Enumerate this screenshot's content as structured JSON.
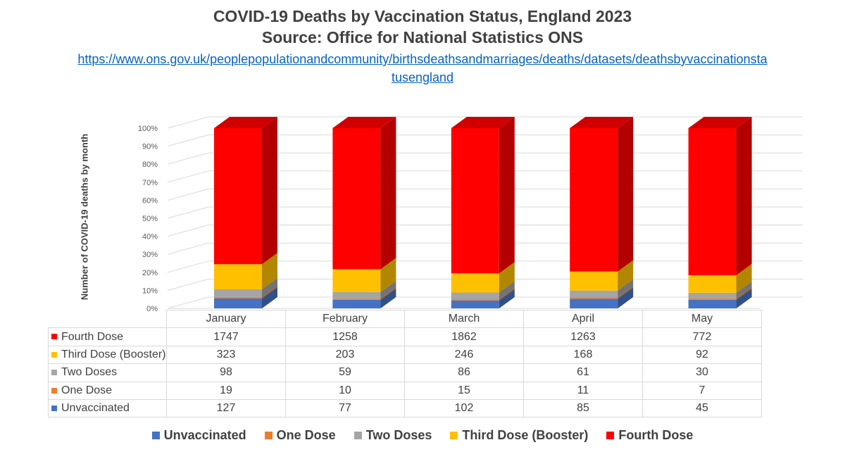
{
  "chart_data": {
    "type": "bar",
    "stacking": "percent",
    "title": "COVID-19 Deaths by Vaccination Status, England 2023",
    "subtitle": "Source: Office for National Statistics ONS",
    "source_url": "https://www.ons.gov.uk/peoplepopulationandcommunity/birthsdeathsandmarriages/deaths/datasets/deathsbyvaccinationstatusengland",
    "ylabel": "Number of COVID-19 deaths by month",
    "ylim": [
      0,
      100
    ],
    "yticks": [
      "0%",
      "10%",
      "20%",
      "30%",
      "40%",
      "50%",
      "60%",
      "70%",
      "80%",
      "90%",
      "100%"
    ],
    "categories": [
      "January",
      "February",
      "March",
      "April",
      "May"
    ],
    "series": [
      {
        "name": "Unvaccinated",
        "color": "#4472c4",
        "values": [
          127,
          77,
          102,
          85,
          45
        ]
      },
      {
        "name": "One Dose",
        "color": "#ed7d31",
        "values": [
          19,
          10,
          15,
          11,
          7
        ]
      },
      {
        "name": "Two Doses",
        "color": "#a5a5a5",
        "values": [
          98,
          59,
          86,
          61,
          30
        ]
      },
      {
        "name": "Third Dose (Booster)",
        "color": "#ffc000",
        "values": [
          323,
          203,
          246,
          168,
          92
        ]
      },
      {
        "name": "Fourth Dose",
        "color": "#ff0000",
        "values": [
          1747,
          1258,
          1862,
          1263,
          772
        ]
      }
    ],
    "grid": true,
    "legend": "bottom",
    "data_table": true
  }
}
